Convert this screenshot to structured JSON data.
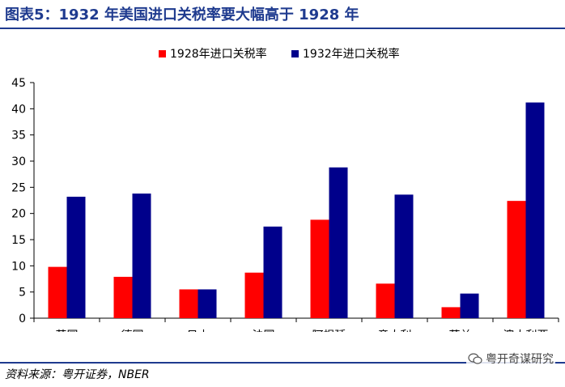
{
  "header": {
    "title": "图表5：1932 年美国进口关税率要大幅高于 1928 年"
  },
  "footer": {
    "source": "资料来源：粤开证券，NBER",
    "watermark": "粤开奇谋研究",
    "watermark_icon": "wechat-icon"
  },
  "colors": {
    "brand": "#1f3b8f",
    "series_1928": "#ff0000",
    "series_1932": "#00008b"
  },
  "chart_data": {
    "type": "bar",
    "categories": [
      "英国",
      "德国",
      "日本",
      "法国",
      "阿根廷",
      "意大利",
      "荷兰",
      "澳大利亚"
    ],
    "series": [
      {
        "name": "1928年进口关税率",
        "values": [
          9.8,
          7.9,
          5.5,
          8.7,
          18.8,
          6.6,
          2.1,
          22.4
        ]
      },
      {
        "name": "1932年进口关税率",
        "values": [
          23.2,
          23.8,
          5.5,
          17.5,
          28.8,
          23.6,
          4.7,
          41.2
        ]
      }
    ],
    "ylim": [
      0,
      45
    ],
    "yticks": [
      0,
      5,
      10,
      15,
      20,
      25,
      30,
      35,
      40,
      45
    ],
    "legend_position": "top-center",
    "grid": false
  }
}
